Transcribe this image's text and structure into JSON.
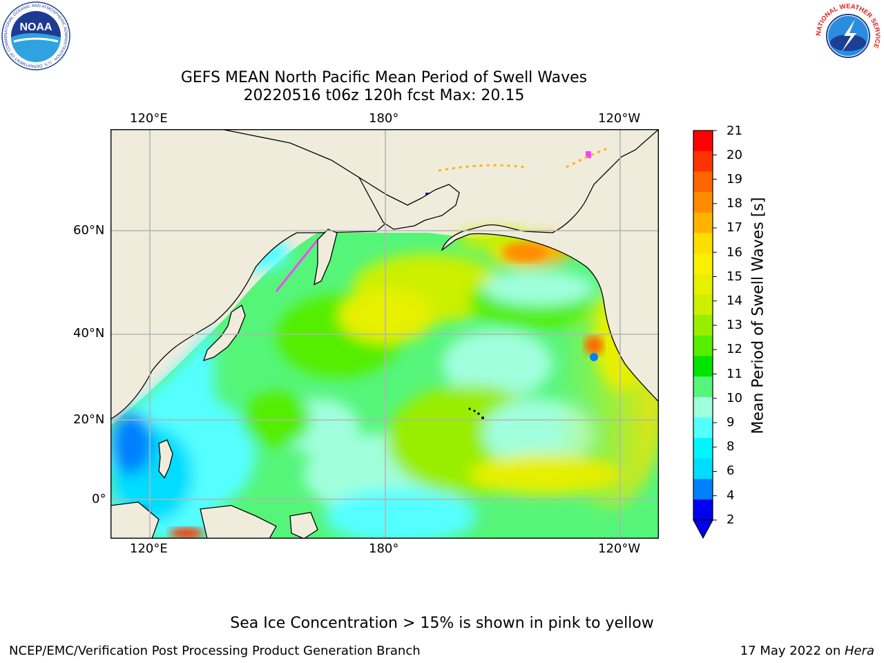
{
  "title": {
    "line1": "GEFS MEAN North Pacific Mean Period of Swell Waves",
    "line2": "20220516 t06z 120h fcst   Max: 20.15"
  },
  "map": {
    "lon_labels_top": [
      "120°E",
      "180°",
      "120°W"
    ],
    "lon_labels_bottom": [
      "120°E",
      "180°",
      "120°W"
    ],
    "lat_labels": [
      "60°N",
      "40°N",
      "20°N",
      "0°"
    ],
    "colors": {
      "land": "#efecdc",
      "gridline": "#b4b4b4"
    }
  },
  "colorbar": {
    "label": "Mean Period of Swell Waves [s]",
    "ticks": [
      "21",
      "20",
      "19",
      "18",
      "17",
      "16",
      "15",
      "14",
      "13",
      "12",
      "11",
      "10",
      "9",
      "8",
      "6",
      "4",
      "2"
    ],
    "colors": [
      "#ff0000",
      "#ff3300",
      "#ff6600",
      "#ff8c00",
      "#ffb300",
      "#ffdd00",
      "#fbf000",
      "#e6f000",
      "#cbf000",
      "#99ee00",
      "#55ee00",
      "#00e400",
      "#55f57a",
      "#a0ffdd",
      "#55ffff",
      "#00f5ff",
      "#00ddff",
      "#0080ff",
      "#0000f0"
    ]
  },
  "ice_note": "Sea Ice Concentration > 15% is shown in pink to yellow",
  "footer": {
    "left": "NCEP/EMC/Verification Post Processing Product Generation Branch",
    "date": "17 May 2022 on ",
    "machine": "Hera"
  },
  "logos": {
    "noaa_text": "NOAA",
    "noaa_ring": "NATIONAL OCEANIC AND ATMOSPHERIC ADMINISTRATION · U.S. DEPARTMENT OF COMMERCE",
    "nws_ring": "NATIONAL WEATHER SERVICE"
  }
}
